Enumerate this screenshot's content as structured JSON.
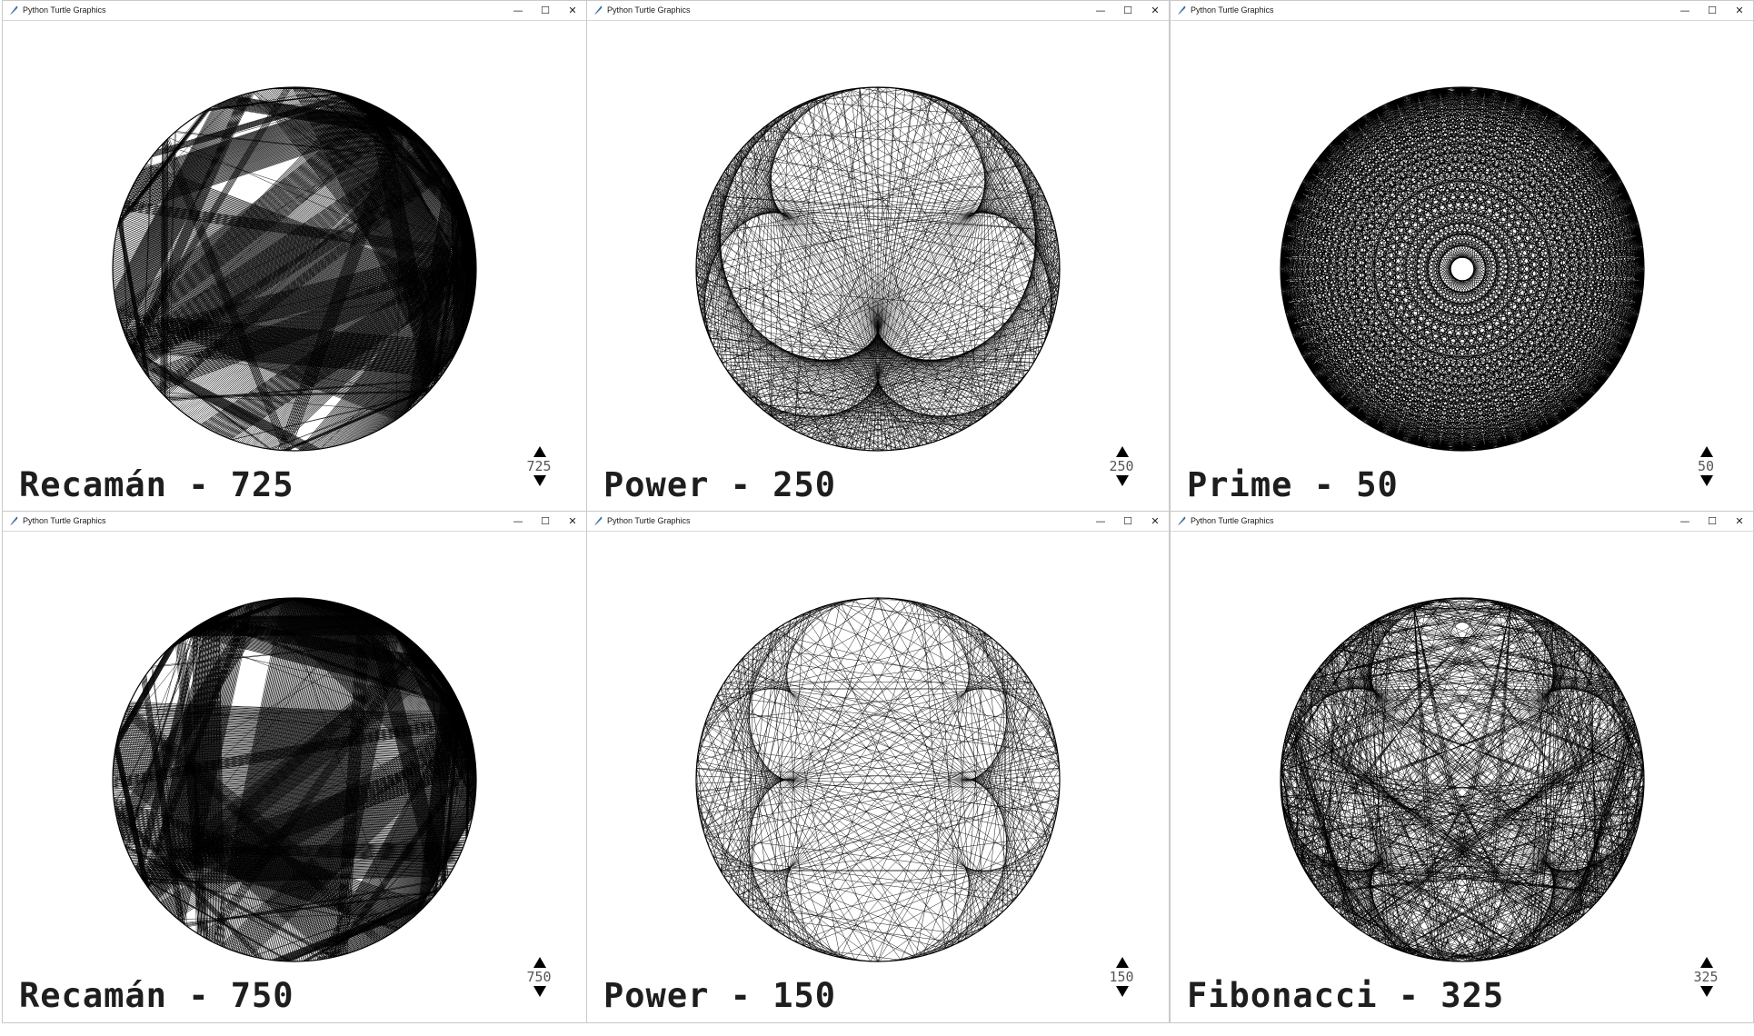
{
  "window_title": "Python Turtle Graphics",
  "controls": {
    "minimize": "—",
    "maximize": "☐",
    "close": "✕"
  },
  "windows": [
    {
      "label": "Recamán - 725",
      "spinner_value": "725",
      "pattern": "recaman",
      "n": 725,
      "seed": 11
    },
    {
      "label": "Power - 250",
      "spinner_value": "250",
      "pattern": "power",
      "n": 250,
      "seed": 23
    },
    {
      "label": "Prime - 50",
      "spinner_value": "50",
      "pattern": "prime",
      "n": 50,
      "seed": 37
    },
    {
      "label": "Recamán - 750",
      "spinner_value": "750",
      "pattern": "recaman",
      "n": 750,
      "seed": 41
    },
    {
      "label": "Power - 150",
      "spinner_value": "150",
      "pattern": "power",
      "n": 150,
      "seed": 53
    },
    {
      "label": "Fibonacci - 325",
      "spinner_value": "325",
      "pattern": "fibonacci",
      "n": 325,
      "seed": 67
    }
  ]
}
